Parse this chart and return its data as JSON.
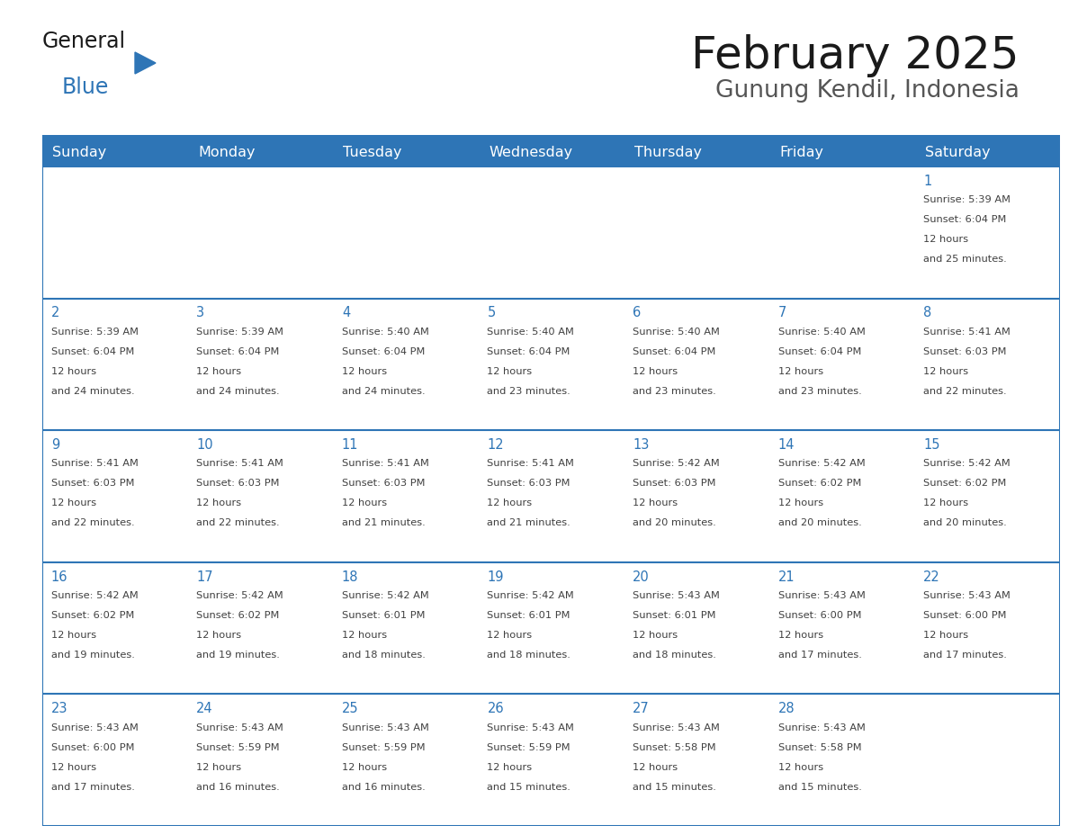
{
  "title": "February 2025",
  "subtitle": "Gunung Kendil, Indonesia",
  "header_bg": "#2E75B6",
  "header_text_color": "#FFFFFF",
  "cell_bg_white": "#FFFFFF",
  "cell_bg_gray": "#F2F2F2",
  "cell_line_color": "#2E75B6",
  "day_number_color": "#2E75B6",
  "info_text_color": "#404040",
  "logo_general_color": "#1a1a1a",
  "logo_blue_color": "#2E75B6",
  "logo_triangle_color": "#2E75B6",
  "days_of_week": [
    "Sunday",
    "Monday",
    "Tuesday",
    "Wednesday",
    "Thursday",
    "Friday",
    "Saturday"
  ],
  "calendar": [
    [
      null,
      null,
      null,
      null,
      null,
      null,
      1
    ],
    [
      2,
      3,
      4,
      5,
      6,
      7,
      8
    ],
    [
      9,
      10,
      11,
      12,
      13,
      14,
      15
    ],
    [
      16,
      17,
      18,
      19,
      20,
      21,
      22
    ],
    [
      23,
      24,
      25,
      26,
      27,
      28,
      null
    ]
  ],
  "sunrise": {
    "1": "5:39 AM",
    "2": "5:39 AM",
    "3": "5:39 AM",
    "4": "5:40 AM",
    "5": "5:40 AM",
    "6": "5:40 AM",
    "7": "5:40 AM",
    "8": "5:41 AM",
    "9": "5:41 AM",
    "10": "5:41 AM",
    "11": "5:41 AM",
    "12": "5:41 AM",
    "13": "5:42 AM",
    "14": "5:42 AM",
    "15": "5:42 AM",
    "16": "5:42 AM",
    "17": "5:42 AM",
    "18": "5:42 AM",
    "19": "5:42 AM",
    "20": "5:43 AM",
    "21": "5:43 AM",
    "22": "5:43 AM",
    "23": "5:43 AM",
    "24": "5:43 AM",
    "25": "5:43 AM",
    "26": "5:43 AM",
    "27": "5:43 AM",
    "28": "5:43 AM"
  },
  "sunset": {
    "1": "6:04 PM",
    "2": "6:04 PM",
    "3": "6:04 PM",
    "4": "6:04 PM",
    "5": "6:04 PM",
    "6": "6:04 PM",
    "7": "6:04 PM",
    "8": "6:03 PM",
    "9": "6:03 PM",
    "10": "6:03 PM",
    "11": "6:03 PM",
    "12": "6:03 PM",
    "13": "6:03 PM",
    "14": "6:02 PM",
    "15": "6:02 PM",
    "16": "6:02 PM",
    "17": "6:02 PM",
    "18": "6:01 PM",
    "19": "6:01 PM",
    "20": "6:01 PM",
    "21": "6:00 PM",
    "22": "6:00 PM",
    "23": "6:00 PM",
    "24": "5:59 PM",
    "25": "5:59 PM",
    "26": "5:59 PM",
    "27": "5:58 PM",
    "28": "5:58 PM"
  },
  "daylight": {
    "1": "12 hours and 25 minutes.",
    "2": "12 hours and 24 minutes.",
    "3": "12 hours and 24 minutes.",
    "4": "12 hours and 24 minutes.",
    "5": "12 hours and 23 minutes.",
    "6": "12 hours and 23 minutes.",
    "7": "12 hours and 23 minutes.",
    "8": "12 hours and 22 minutes.",
    "9": "12 hours and 22 minutes.",
    "10": "12 hours and 22 minutes.",
    "11": "12 hours and 21 minutes.",
    "12": "12 hours and 21 minutes.",
    "13": "12 hours and 20 minutes.",
    "14": "12 hours and 20 minutes.",
    "15": "12 hours and 20 minutes.",
    "16": "12 hours and 19 minutes.",
    "17": "12 hours and 19 minutes.",
    "18": "12 hours and 18 minutes.",
    "19": "12 hours and 18 minutes.",
    "20": "12 hours and 18 minutes.",
    "21": "12 hours and 17 minutes.",
    "22": "12 hours and 17 minutes.",
    "23": "12 hours and 17 minutes.",
    "24": "12 hours and 16 minutes.",
    "25": "12 hours and 16 minutes.",
    "26": "12 hours and 15 minutes.",
    "27": "12 hours and 15 minutes.",
    "28": "12 hours and 15 minutes."
  }
}
